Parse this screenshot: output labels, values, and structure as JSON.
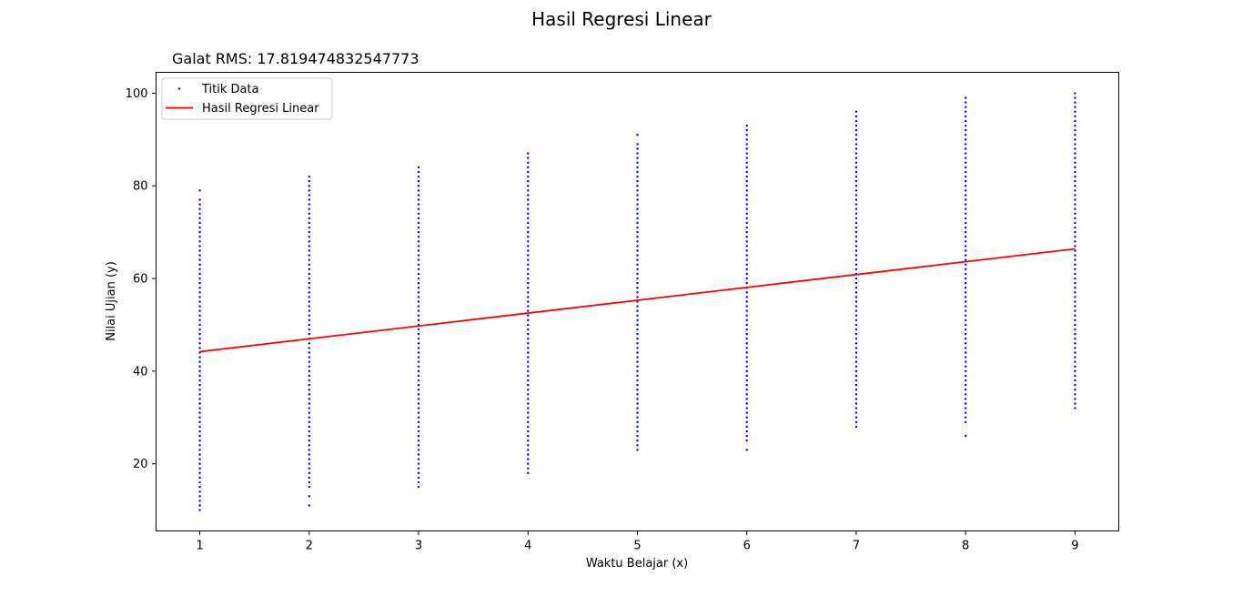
{
  "chart_data": {
    "type": "scatter",
    "title": "Hasil Regresi Linear",
    "subtitle": "Galat RMS: 17.819474832547773",
    "xlabel": "Waktu Belajar (x)",
    "ylabel": "Nilai Ujian (y)",
    "xlim": [
      0.6,
      9.4
    ],
    "ylim": [
      5.5,
      104.5
    ],
    "xticks": [
      1,
      2,
      3,
      4,
      5,
      6,
      7,
      8,
      9
    ],
    "yticks": [
      20,
      40,
      60,
      80,
      100
    ],
    "grid": false,
    "legend_position": "top-left",
    "series": [
      {
        "name": "Titik Data",
        "kind": "scatter",
        "color": "#0000ff",
        "points": [
          {
            "x": 1,
            "y_min": 10,
            "y_max": 77,
            "outliers": [
              79
            ]
          },
          {
            "x": 2,
            "y_min": 15,
            "y_max": 82,
            "outliers": [
              11,
              13
            ]
          },
          {
            "x": 3,
            "y_min": 16,
            "y_max": 84,
            "outliers": [
              15
            ]
          },
          {
            "x": 4,
            "y_min": 19,
            "y_max": 87,
            "outliers": [
              18
            ]
          },
          {
            "x": 5,
            "y_min": 23,
            "y_max": 89,
            "outliers": [
              91
            ]
          },
          {
            "x": 6,
            "y_min": 25,
            "y_max": 93,
            "outliers": [
              23
            ]
          },
          {
            "x": 7,
            "y_min": 28,
            "y_max": 96,
            "outliers": []
          },
          {
            "x": 8,
            "y_min": 29,
            "y_max": 99,
            "outliers": [
              26
            ]
          },
          {
            "x": 9,
            "y_min": 32,
            "y_max": 100,
            "outliers": []
          }
        ]
      },
      {
        "name": "Hasil Regresi Linear",
        "kind": "line",
        "color": "#ff0000",
        "x": [
          1,
          9
        ],
        "y": [
          44.2,
          66.4
        ]
      }
    ]
  }
}
